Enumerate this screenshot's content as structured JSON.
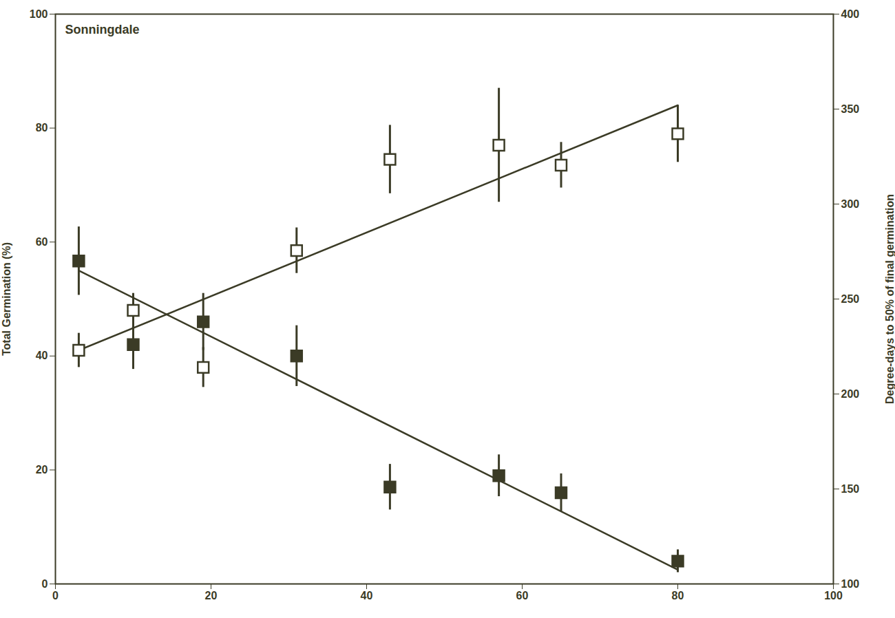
{
  "chart_data": {
    "type": "scatter",
    "title": "Sonningdale",
    "y_label": "Total Germination (%)",
    "y2_label": "Degree-days to 50% of final germination",
    "xlim": [
      0,
      100
    ],
    "xticks": [
      0,
      20,
      40,
      60,
      80,
      100
    ],
    "ylim": [
      0,
      100
    ],
    "yticks": [
      0,
      20,
      40,
      60,
      80,
      100
    ],
    "y2lim": [
      100,
      400
    ],
    "y2ticks": [
      100,
      150,
      200,
      250,
      300,
      350,
      400
    ],
    "grid": false,
    "series": [
      {
        "marker": "square-open",
        "color": "#3b3b26",
        "x": [
          3,
          10,
          19,
          31,
          43,
          57,
          65,
          80
        ],
        "values": [
          41,
          48,
          38,
          58.5,
          74.5,
          77,
          73.5,
          79
        ],
        "errors": [
          3,
          3,
          3.5,
          4,
          6,
          10,
          4,
          5
        ],
        "fit_x": [
          3,
          80
        ],
        "fit_values": [
          41,
          84
        ]
      },
      {
        "marker": "square-filled",
        "color": "#3b3b26",
        "axis": "y2",
        "x": [
          3,
          10,
          19,
          31,
          43,
          57,
          65,
          80
        ],
        "values": [
          270,
          226,
          238,
          220,
          151,
          157,
          148,
          112
        ],
        "errors": [
          18,
          13,
          15,
          16,
          12,
          11,
          10,
          6
        ],
        "fit_x": [
          3,
          80
        ],
        "fit_values": [
          265,
          107.5
        ]
      }
    ]
  }
}
